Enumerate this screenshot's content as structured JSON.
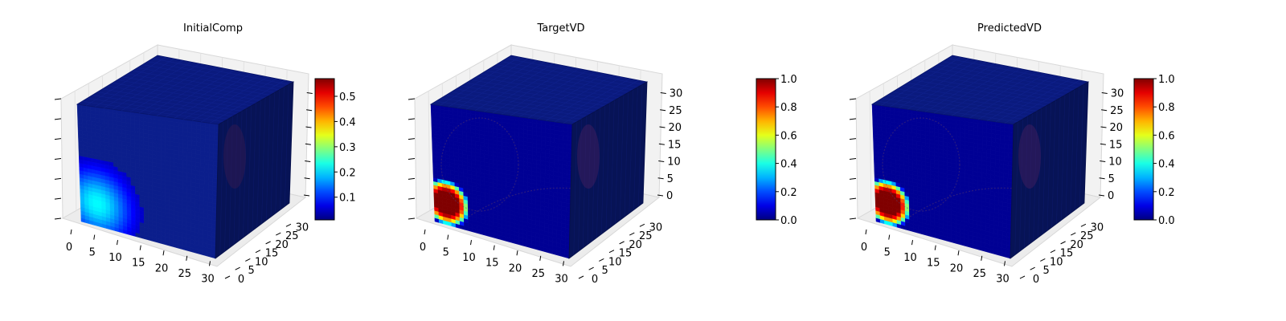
{
  "chart_data": [
    {
      "type": "heatmap",
      "subtype": "3d-voxel",
      "title": "InitialComp",
      "x_ticks": [
        "0",
        "5",
        "10",
        "15",
        "20",
        "25",
        "30"
      ],
      "y_ticks": [
        "0",
        "5",
        "10",
        "15",
        "20",
        "25",
        "30"
      ],
      "z_ticks": [
        "",
        "",
        "",
        "",
        "",
        "",
        ""
      ],
      "xlim": [
        0,
        32
      ],
      "ylim": [
        0,
        32
      ],
      "zlim": [
        0,
        32
      ],
      "colormap": "jet",
      "colorbar": {
        "min": 0.01,
        "max": 0.57,
        "ticks": [
          "0.1",
          "0.2",
          "0.3",
          "0.4",
          "0.5"
        ],
        "tick_values": [
          0.1,
          0.2,
          0.3,
          0.4,
          0.5
        ]
      },
      "blob": {
        "center_x": 4,
        "center_z": 6,
        "peak": 0.22,
        "radius": 12
      }
    },
    {
      "type": "heatmap",
      "subtype": "3d-voxel",
      "title": "TargetVD",
      "x_ticks": [
        "0",
        "5",
        "10",
        "15",
        "20",
        "25",
        "30"
      ],
      "y_ticks": [
        "0",
        "5",
        "10",
        "15",
        "20",
        "25",
        "30"
      ],
      "z_ticks": [
        "0",
        "5",
        "10",
        "15",
        "20",
        "25",
        "30"
      ],
      "xlim": [
        0,
        32
      ],
      "ylim": [
        0,
        32
      ],
      "zlim": [
        0,
        32
      ],
      "colormap": "jet",
      "colorbar": {
        "min": 0.0,
        "max": 1.0,
        "ticks": [
          "0.0",
          "0.2",
          "0.4",
          "0.6",
          "0.8",
          "1.0"
        ],
        "tick_values": [
          0.0,
          0.2,
          0.4,
          0.6,
          0.8,
          1.0
        ]
      },
      "blob": {
        "center_x": 3,
        "center_z": 6,
        "peak": 1.0,
        "radius": 5.5
      }
    },
    {
      "type": "heatmap",
      "subtype": "3d-voxel",
      "title": "PredictedVD",
      "x_ticks": [
        "0",
        "5",
        "10",
        "15",
        "20",
        "25",
        "30"
      ],
      "y_ticks": [
        "0",
        "5",
        "10",
        "15",
        "20",
        "25",
        "30"
      ],
      "z_ticks": [
        "0",
        "5",
        "10",
        "15",
        "20",
        "25",
        "30"
      ],
      "xlim": [
        0,
        32
      ],
      "ylim": [
        0,
        32
      ],
      "zlim": [
        0,
        32
      ],
      "colormap": "jet",
      "colorbar": {
        "min": 0.0,
        "max": 1.0,
        "ticks": [
          "0.0",
          "0.2",
          "0.4",
          "0.6",
          "0.8",
          "1.0"
        ],
        "tick_values": [
          0.0,
          0.2,
          0.4,
          0.6,
          0.8,
          1.0
        ]
      },
      "blob": {
        "center_x": 3,
        "center_z": 6,
        "peak": 1.0,
        "radius": 5.5
      }
    }
  ]
}
